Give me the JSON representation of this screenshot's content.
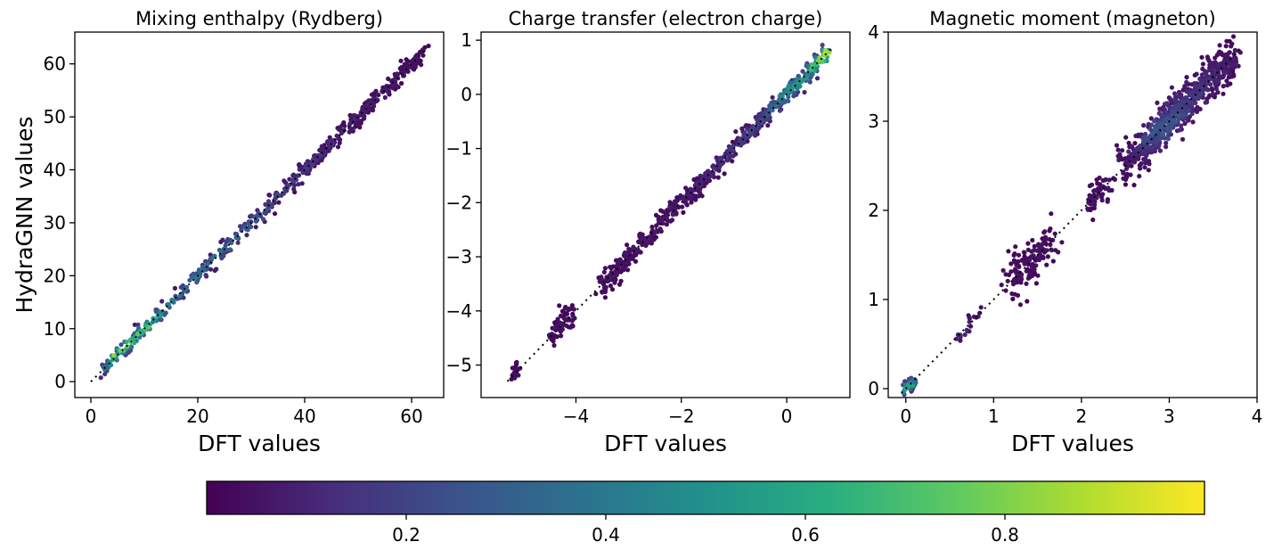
{
  "chart_data": {
    "type": "scatter",
    "description_free": true,
    "shared": {
      "xlabel": "DFT values",
      "ylabel": "HydraGNN values",
      "colormap": "viridis",
      "colorbar": {
        "range": [
          0.0,
          1.0
        ],
        "ticks": [
          0.2,
          0.4,
          0.6,
          0.8
        ],
        "tick_labels": [
          "0.2",
          "0.4",
          "0.6",
          "0.8"
        ],
        "orientation": "horizontal",
        "placement": "bottom"
      }
    },
    "panels": [
      {
        "title": "Mixing enthalpy (Rydberg)",
        "xlim": [
          -3,
          66
        ],
        "ylim": [
          -3,
          66
        ],
        "xticks": [
          0,
          20,
          40,
          60
        ],
        "xtick_labels": [
          "0",
          "20",
          "40",
          "60"
        ],
        "yticks": [
          0,
          10,
          20,
          30,
          40,
          50,
          60
        ],
        "ytick_labels": [
          "0",
          "10",
          "20",
          "30",
          "40",
          "50",
          "60"
        ],
        "show_ylabel": true,
        "ideal_line": [
          [
            0,
            0
          ],
          [
            63,
            63
          ]
        ],
        "density_trend": [
          [
            2,
            0.35
          ],
          [
            5,
            0.85
          ],
          [
            10,
            0.75
          ],
          [
            15,
            0.45
          ],
          [
            25,
            0.35
          ],
          [
            35,
            0.22
          ],
          [
            45,
            0.1
          ],
          [
            63,
            0.02
          ]
        ],
        "clusters": [
          {
            "x_range": [
              2,
              63
            ],
            "spread": 0.75,
            "n": 520
          }
        ]
      },
      {
        "title": "Charge transfer (electron charge)",
        "xlim": [
          -5.8,
          1.2
        ],
        "ylim": [
          -5.6,
          1.15
        ],
        "xticks": [
          -4,
          -2,
          0
        ],
        "xtick_labels": [
          "−4",
          "−2",
          "0"
        ],
        "yticks": [
          -5,
          -4,
          -3,
          -2,
          -1,
          0,
          1
        ],
        "ytick_labels": [
          "−5",
          "−4",
          "−3",
          "−2",
          "−1",
          "0",
          "1"
        ],
        "show_ylabel": false,
        "ideal_line": [
          [
            -5.3,
            -5.3
          ],
          [
            0.85,
            0.85
          ]
        ],
        "density_trend": [
          [
            -5.2,
            0.02
          ],
          [
            -2,
            0.05
          ],
          [
            -0.5,
            0.2
          ],
          [
            0,
            0.5
          ],
          [
            0.5,
            0.7
          ],
          [
            0.8,
            0.95
          ]
        ],
        "clusters": [
          {
            "x_range": [
              -5.2,
              -5.05
            ],
            "spread": 0.1,
            "n": 20
          },
          {
            "x_range": [
              -4.45,
              -4.05
            ],
            "spread": 0.12,
            "n": 60
          },
          {
            "x_range": [
              -3.55,
              -3.35
            ],
            "spread": 0.12,
            "n": 30
          },
          {
            "x_range": [
              -3.35,
              0.8
            ],
            "spread": 0.09,
            "n": 560
          }
        ]
      },
      {
        "title": "Magnetic moment (magneton)",
        "xlim": [
          -0.2,
          4.0
        ],
        "ylim": [
          -0.1,
          4.0
        ],
        "xticks": [
          0,
          1,
          2,
          3,
          4
        ],
        "xtick_labels": [
          "0",
          "1",
          "2",
          "3",
          "4"
        ],
        "yticks": [
          0,
          1,
          2,
          3,
          4
        ],
        "ytick_labels": [
          "0",
          "1",
          "2",
          "3",
          "4"
        ],
        "show_ylabel": false,
        "ideal_line": [
          [
            -0.05,
            -0.05
          ],
          [
            3.8,
            3.8
          ]
        ],
        "density_trend": [
          [
            0,
            0.7
          ],
          [
            0.15,
            0.2
          ],
          [
            1,
            0.02
          ],
          [
            2.6,
            0.05
          ],
          [
            2.9,
            0.3
          ],
          [
            3.2,
            0.18
          ],
          [
            3.7,
            0.05
          ]
        ],
        "clusters": [
          {
            "x_range": [
              -0.02,
              0.12
            ],
            "spread": 0.04,
            "n": 45
          },
          {
            "x_range": [
              0.55,
              0.85
            ],
            "spread": 0.06,
            "n": 20
          },
          {
            "x_range": [
              1.2,
              1.65
            ],
            "spread": 0.13,
            "n": 140
          },
          {
            "x_range": [
              2.05,
              2.3
            ],
            "spread": 0.08,
            "n": 60
          },
          {
            "x_range": [
              2.5,
              3.75
            ],
            "spread": 0.11,
            "n": 650
          }
        ]
      }
    ]
  }
}
